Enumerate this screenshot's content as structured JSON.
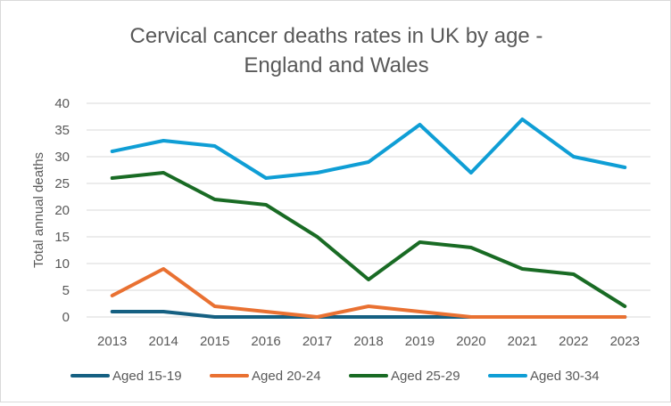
{
  "chart_data": {
    "type": "line",
    "title_lines": [
      "Cervical cancer deaths rates in UK by age -",
      "England and Wales"
    ],
    "xlabel": "",
    "ylabel": "Total annual deaths",
    "ylim": [
      0,
      40
    ],
    "ytick_step": 5,
    "grid": true,
    "legend_position": "bottom",
    "categories": [
      "2013",
      "2014",
      "2015",
      "2016",
      "2017",
      "2018",
      "2019",
      "2020",
      "2021",
      "2022",
      "2023"
    ],
    "series": [
      {
        "name": "Aged 15-19",
        "color": "#156082",
        "values": [
          1,
          1,
          0,
          0,
          0,
          0,
          0,
          0,
          0,
          0,
          0
        ]
      },
      {
        "name": "Aged 20-24",
        "color": "#E97132",
        "values": [
          4,
          9,
          2,
          1,
          0,
          2,
          1,
          0,
          0,
          0,
          0
        ]
      },
      {
        "name": "Aged 25-29",
        "color": "#196B24",
        "values": [
          26,
          27,
          22,
          21,
          15,
          7,
          14,
          13,
          9,
          8,
          2
        ]
      },
      {
        "name": "Aged 30-34",
        "color": "#0F9ED5",
        "values": [
          31,
          33,
          32,
          26,
          27,
          29,
          36,
          27,
          37,
          30,
          28
        ]
      }
    ]
  }
}
